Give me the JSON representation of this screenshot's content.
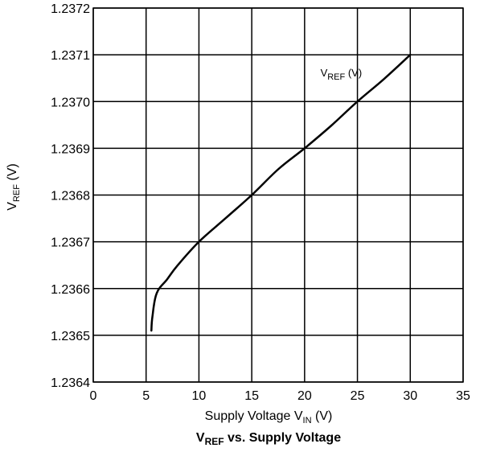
{
  "chart_data": {
    "type": "line",
    "title": {
      "main": "V",
      "sub": "REF",
      "rest": " vs. Supply Voltage"
    },
    "xlabel": {
      "main": "Supply Voltage V",
      "sub": "IN",
      "rest": " (V)"
    },
    "ylabel": {
      "main": "V",
      "sub": "REF",
      "rest": " (V)"
    },
    "xlim": [
      0,
      35
    ],
    "ylim": [
      1.2364,
      1.2372
    ],
    "x_ticks": [
      "0",
      "5",
      "10",
      "15",
      "20",
      "25",
      "30",
      "35"
    ],
    "y_ticks": [
      "1.2364",
      "1.2365",
      "1.2366",
      "1.2367",
      "1.2368",
      "1.2369",
      "1.2370",
      "1.2371",
      "1.2372"
    ],
    "grid": true,
    "series": [
      {
        "name": {
          "main": "V",
          "sub": "REF",
          "rest": " (V)"
        },
        "x": [
          5.5,
          5.6,
          6.0,
          7.0,
          8.0,
          10.0,
          12.5,
          15.0,
          17.5,
          20.0,
          22.5,
          25.0,
          27.5,
          30.0
        ],
        "y": [
          1.23651,
          1.23654,
          1.23659,
          1.23662,
          1.23665,
          1.2367,
          1.23675,
          1.2368,
          1.236855,
          1.2369,
          1.236948,
          1.237,
          1.237048,
          1.2371
        ]
      }
    ]
  }
}
